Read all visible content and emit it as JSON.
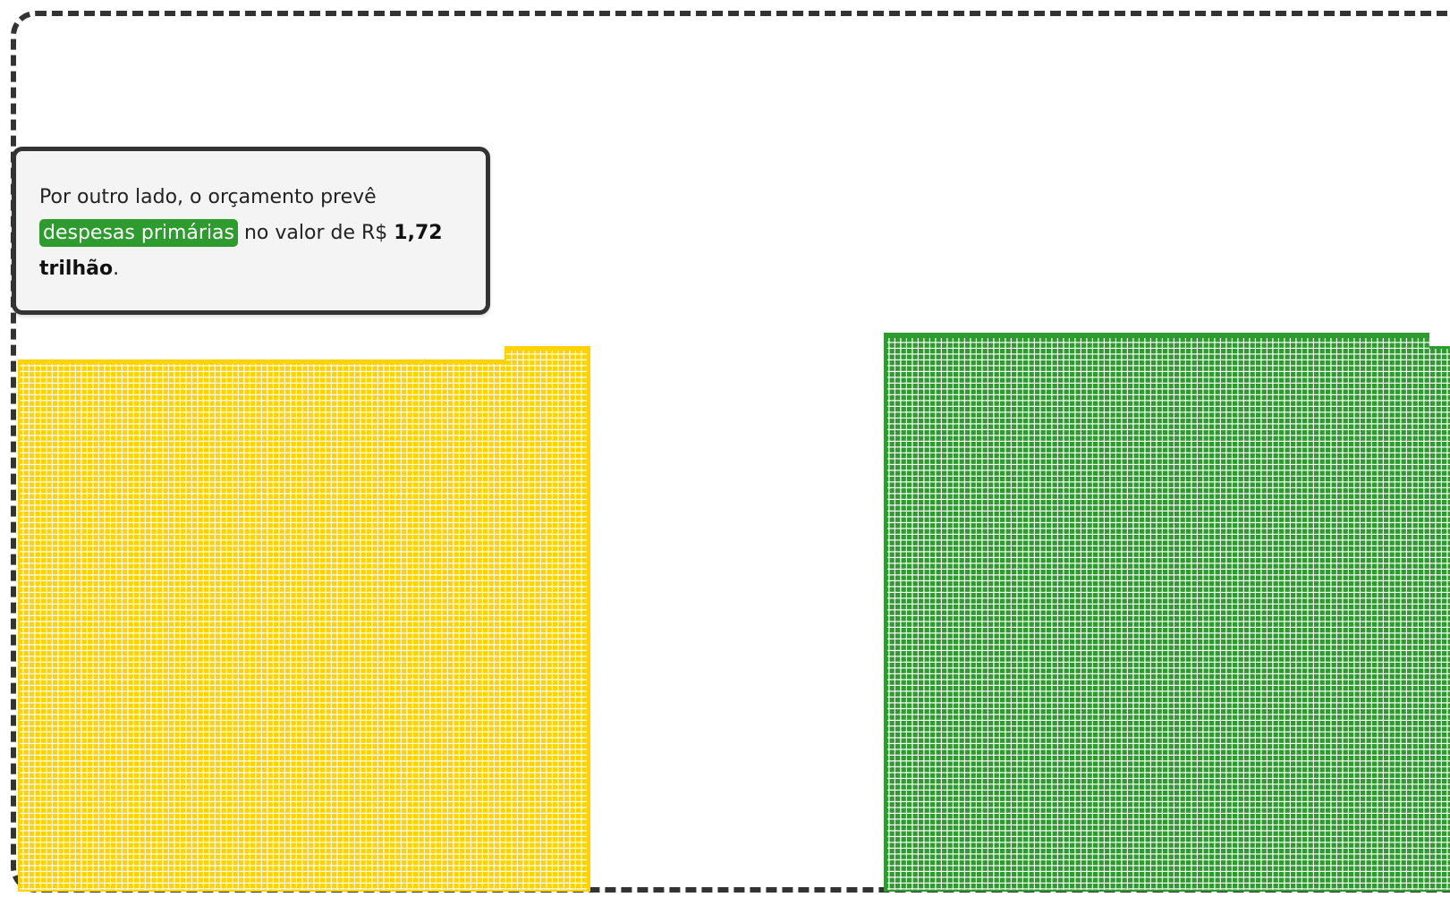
{
  "colors": {
    "revenue_block": "#ffd200",
    "expense_block": "#2e9b2e",
    "frame": "#333333",
    "callout_bg": "#f4f4f4"
  },
  "callout": {
    "text_before": "Por outro lado, o orçamento prevê ",
    "highlight": "despesas primárias",
    "text_middle": " no valor de R$ ",
    "amount": "1,72 trilhão",
    "text_after": "."
  }
}
